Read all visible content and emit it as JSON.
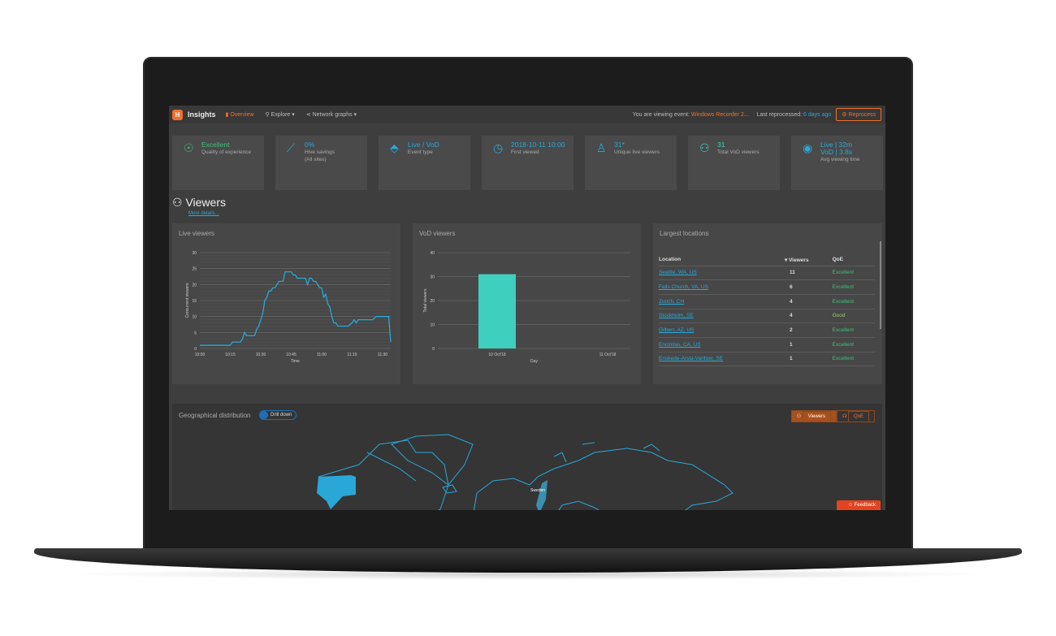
{
  "nav": {
    "logo": "H",
    "brand": "Insights",
    "overview": "Overview",
    "explore": "Explore ▾",
    "network": "Network graphs ▾",
    "viewing_label": "You are viewing event:",
    "event": "Windows Recorder 2...",
    "reprocessed_label": "Last reprocessed:",
    "reprocessed": "6 days ago",
    "reprocess": "Reprocess"
  },
  "cards": [
    {
      "icon": "award-icon",
      "value": "Excellent",
      "label": "Quality of experience",
      "color": "#3cc07a"
    },
    {
      "icon": "trend-icon",
      "value": "0%",
      "label": "Hive savings",
      "label2": "(All sites)",
      "color": "#29a8d8"
    },
    {
      "icon": "tag-icon",
      "value": "Live / VoD",
      "label": "Event type",
      "color": "#29a8d8"
    },
    {
      "icon": "clock-icon",
      "value": "2018-10-11 10:00",
      "label": "First viewed",
      "color": "#29a8d8"
    },
    {
      "icon": "user-icon",
      "value": "31*",
      "label": "Unique live viewers",
      "color": "#29a8d8"
    },
    {
      "icon": "users-icon",
      "value": "31",
      "label": "Total VoD viewers",
      "color": "#3fcfbf"
    },
    {
      "icon": "eye-icon",
      "value": "Live | 32m",
      "value2": "VoD | 3.8s",
      "label": "Avg viewing time",
      "color": "#29a8d8"
    }
  ],
  "section": {
    "title": "Viewers",
    "more": "More details..."
  },
  "chart_data": [
    {
      "type": "line",
      "title": "Live viewers",
      "xlabel": "Time",
      "ylabel": "Concurrent viewers",
      "ylim": [
        0,
        30
      ],
      "yticks": [
        0,
        5,
        10,
        15,
        20,
        25,
        30
      ],
      "xticks": [
        "10:00",
        "10:15",
        "10:30",
        "10:45",
        "11:00",
        "11:15",
        "11:30"
      ],
      "color": "#29a8d8",
      "x": [
        "10:00",
        "10:15",
        "10:16",
        "10:20",
        "10:21",
        "10:22",
        "10:23",
        "10:27",
        "10:28",
        "10:29",
        "10:30",
        "10:31",
        "10:32",
        "10:33",
        "10:34",
        "10:35",
        "10:36",
        "10:37",
        "10:38",
        "10:39",
        "10:41",
        "10:42",
        "10:45",
        "10:46",
        "10:47",
        "10:48",
        "10:52",
        "10:53",
        "10:54",
        "10:55",
        "10:56",
        "10:57",
        "10:58",
        "10:59",
        "11:00",
        "11:01",
        "11:02",
        "11:03",
        "11:04",
        "11:05",
        "11:06",
        "11:07",
        "11:08",
        "11:13",
        "11:15",
        "11:16",
        "11:17",
        "11:18",
        "11:25",
        "11:27",
        "11:33",
        "11:34"
      ],
      "y": [
        1,
        1,
        2,
        2,
        3,
        5,
        4,
        4,
        6,
        7,
        9,
        11,
        15,
        16,
        18,
        18,
        19,
        19,
        20,
        21,
        21,
        24,
        24,
        23,
        23,
        22,
        22,
        20,
        22,
        22,
        21,
        21,
        20,
        19,
        19,
        16,
        17,
        14,
        13,
        10,
        8,
        8,
        7,
        7,
        8,
        9,
        8,
        9,
        9,
        10,
        10,
        2
      ]
    },
    {
      "type": "bar",
      "title": "VoD viewers",
      "xlabel": "Day",
      "ylabel": "Total viewers",
      "ylim": [
        0,
        40
      ],
      "yticks": [
        0,
        10,
        20,
        30,
        40
      ],
      "categories": [
        "10 Oct'18",
        "11 Oct'18"
      ],
      "values": [
        31,
        0
      ],
      "color": "#3fcfbf"
    }
  ],
  "locations": {
    "title": "Largest locations",
    "headers": [
      "Location",
      "▾ Viewers",
      "QoE"
    ],
    "rows": [
      [
        "Seattle, WA, US",
        "11",
        "Excellent"
      ],
      [
        "Falls Church, VA, US",
        "6",
        "Excellent"
      ],
      [
        "Zurich, CH",
        "4",
        "Excellent"
      ],
      [
        "Stockholm, SE",
        "4",
        "Good"
      ],
      [
        "Gilbert, AZ, US",
        "2",
        "Excellent"
      ],
      [
        "Encinitas, CA, US",
        "1",
        "Excellent"
      ],
      [
        "Enskede-Arsta-Vantoer, SE",
        "1",
        "Excellent"
      ]
    ]
  },
  "geo": {
    "title": "Geographical distribution",
    "toggle": "Drill down",
    "viewers": "Viewers",
    "qoe": "QoE",
    "map_label": "Sweden",
    "feedback": "Feedback"
  }
}
